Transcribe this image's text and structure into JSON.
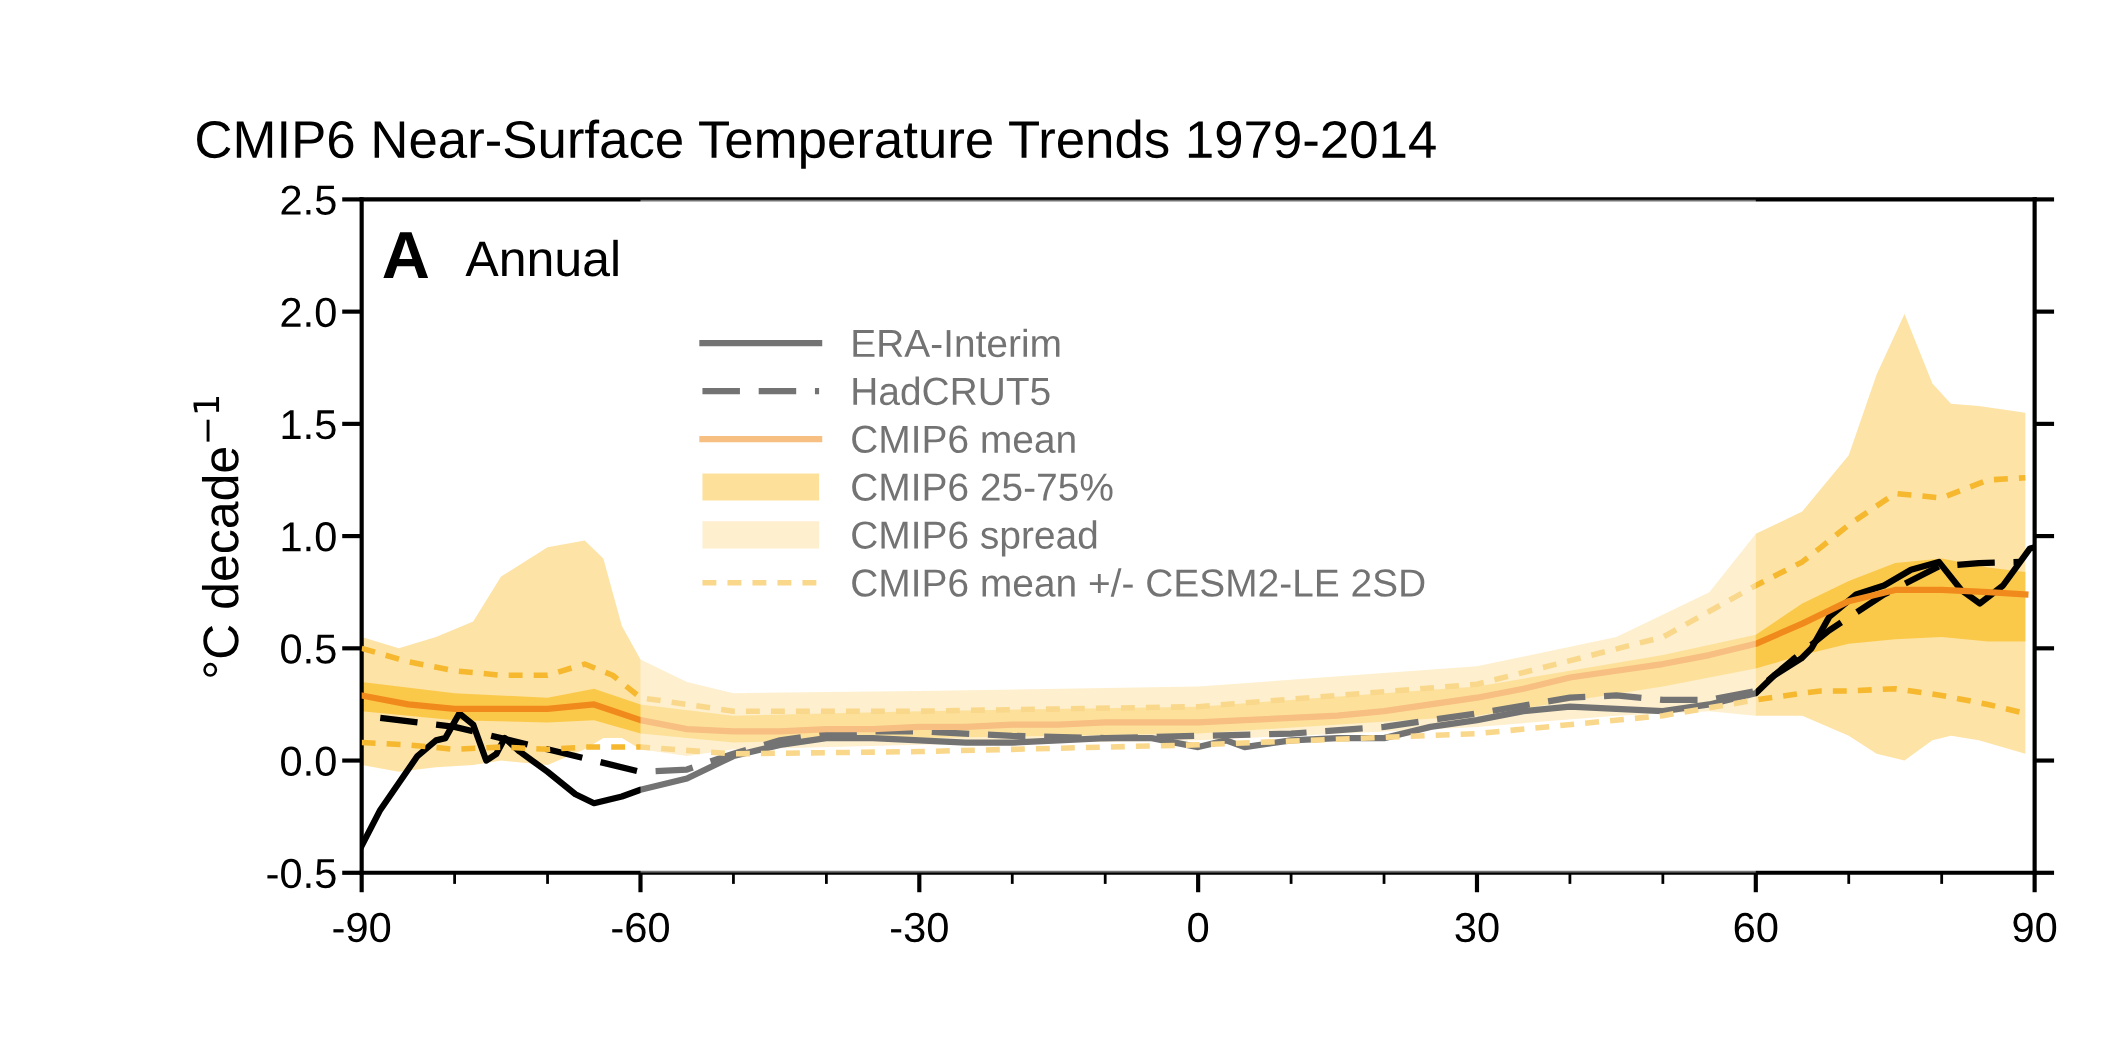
{
  "chart_data": {
    "type": "line",
    "title": "CMIP6 Near-Surface Temperature Trends 1979-2014",
    "ylabel": "°C decade$^{−1}$",
    "annotations": [
      "A",
      "Annual"
    ],
    "xlim": [
      -90,
      90
    ],
    "xticks": [
      -90,
      {
        "value": -80,
        "label": null
      },
      {
        "value": -70,
        "label": null
      },
      -60,
      {
        "value": -50,
        "label": null
      },
      {
        "value": -40,
        "label": null
      },
      -30,
      {
        "value": -20,
        "label": null
      },
      {
        "value": -10,
        "label": null
      },
      0,
      {
        "value": 10,
        "label": null
      },
      {
        "value": 20,
        "label": null
      },
      30,
      {
        "value": 40,
        "label": null
      },
      {
        "value": 50,
        "label": null
      },
      60,
      {
        "value": 70,
        "label": null
      },
      {
        "value": 80,
        "label": null
      },
      90
    ],
    "ylim": [
      -0.5,
      2.5
    ],
    "yticks": [
      {
        "value": -0.5,
        "label": "-0.5"
      },
      {
        "value": 0,
        "label": "0.0"
      },
      0.5,
      {
        "value": 1.0,
        "label": "1.0"
      },
      1.5,
      {
        "value": 2.0,
        "label": "2.0"
      },
      2.5
    ],
    "grid": false,
    "legend": "top",
    "bands": [
      {
        "axis": "x",
        "from": -60,
        "to": 60,
        "color": "#ffffff"
      }
    ],
    "series": [
      {
        "name": "ERA-Interim",
        "color": "#000000",
        "line_style": "solid",
        "x": [
          -90,
          -89,
          -88,
          -86,
          -84,
          -82,
          -81,
          -79.5,
          -78,
          -76.6,
          -75.5,
          -74.6,
          -73,
          -70,
          -67,
          -65,
          -62,
          -60,
          -55,
          -50,
          -45,
          -40,
          -35,
          -30,
          -25,
          -20,
          -15,
          -10,
          -5,
          0,
          3,
          5,
          10,
          15,
          20,
          25,
          30,
          35,
          40,
          45,
          50,
          55,
          60,
          62,
          64.9,
          66,
          67.9,
          70.8,
          73.8,
          76.7,
          79.7,
          82.1,
          84.1,
          86.6,
          89.5,
          90
        ],
        "values": [
          -0.38,
          -0.3,
          -0.22,
          -0.1,
          0.02,
          0.09,
          0.1,
          0.21,
          0.16,
          0.0,
          0.03,
          0.1,
          0.04,
          -0.05,
          -0.15,
          -0.19,
          -0.16,
          -0.13,
          -0.08,
          0.02,
          0.07,
          0.1,
          0.1,
          0.09,
          0.08,
          0.08,
          0.09,
          0.1,
          0.1,
          0.06,
          0.09,
          0.06,
          0.09,
          0.1,
          0.1,
          0.15,
          0.18,
          0.22,
          0.24,
          0.23,
          0.22,
          0.25,
          0.3,
          0.38,
          0.455,
          0.5,
          0.64,
          0.74,
          0.78,
          0.85,
          0.885,
          0.76,
          0.7,
          0.78,
          0.945,
          0.95
        ]
      },
      {
        "name": "HadCRUT5",
        "color": "#000000",
        "line_style": "dashed",
        "x": [
          -88,
          -80,
          -75,
          -70,
          -65,
          -60,
          -55,
          -50,
          -45,
          -40,
          -35,
          -30,
          -20,
          -10,
          0,
          10,
          20,
          30,
          40,
          45,
          50,
          55,
          60,
          64,
          67.9,
          73.8,
          79.7,
          84,
          88.5
        ],
        "values": [
          0.19,
          0.15,
          0.1,
          0.05,
          0.0,
          -0.05,
          -0.04,
          0.03,
          0.09,
          0.12,
          0.13,
          0.13,
          0.11,
          0.1,
          0.11,
          0.12,
          0.15,
          0.21,
          0.28,
          0.29,
          0.27,
          0.27,
          0.31,
          0.45,
          0.58,
          0.74,
          0.865,
          0.88,
          0.885
        ]
      },
      {
        "name": "CMIP6 mean",
        "color": "#f08a1c",
        "line_style": "solid",
        "x": [
          -90,
          -85,
          -80,
          -75,
          -70,
          -65,
          -60,
          -55,
          -50,
          -45,
          -40,
          -35,
          -30,
          -25,
          -20,
          -15,
          -10,
          -5,
          0,
          5,
          10,
          15,
          20,
          25,
          30,
          35,
          40,
          45,
          50,
          55,
          60,
          65,
          70,
          75,
          80,
          85,
          89
        ],
        "values": [
          0.29,
          0.25,
          0.23,
          0.23,
          0.23,
          0.25,
          0.18,
          0.14,
          0.13,
          0.13,
          0.14,
          0.14,
          0.15,
          0.15,
          0.16,
          0.16,
          0.17,
          0.17,
          0.17,
          0.18,
          0.19,
          0.2,
          0.22,
          0.25,
          0.28,
          0.32,
          0.37,
          0.4,
          0.43,
          0.47,
          0.52,
          0.61,
          0.71,
          0.76,
          0.76,
          0.75,
          0.74
        ]
      },
      {
        "name": "CMIP6 25-75%",
        "type": "area",
        "color": "#fbc94a",
        "x": [
          -90,
          -80,
          -70,
          -65,
          -60,
          -50,
          -30,
          0,
          30,
          50,
          60,
          65,
          70,
          75,
          80,
          85,
          89
        ],
        "values": [
          null,
          null,
          null,
          null,
          null,
          null,
          null,
          null,
          null,
          null,
          null,
          null,
          null,
          null,
          null,
          null,
          null
        ],
        "lower": [
          0.22,
          0.18,
          0.17,
          0.18,
          0.12,
          0.08,
          0.1,
          0.12,
          0.2,
          0.33,
          0.41,
          0.47,
          0.52,
          0.54,
          0.55,
          0.53,
          0.53
        ],
        "upper": [
          0.35,
          0.3,
          0.28,
          0.32,
          0.25,
          0.2,
          0.22,
          0.24,
          0.33,
          0.47,
          0.56,
          0.7,
          0.8,
          0.88,
          0.9,
          0.86,
          0.84
        ]
      },
      {
        "name": "CMIP6 spread",
        "type": "area",
        "color": "#fde3a6",
        "x": [
          -90,
          -86,
          -82,
          -78,
          -75,
          -70,
          -66,
          -64,
          -62,
          -60,
          -55,
          -50,
          -30,
          0,
          30,
          45,
          55,
          60,
          65,
          70,
          73,
          76,
          79,
          81,
          84,
          89
        ],
        "values": [
          null,
          null,
          null,
          null,
          null,
          null,
          null,
          null,
          null,
          null,
          null,
          null,
          null,
          null,
          null,
          null,
          null,
          null,
          null,
          null,
          null,
          null,
          null,
          null,
          null,
          null
        ],
        "lower": [
          -0.02,
          -0.05,
          -0.03,
          -0.02,
          0.0,
          -0.02,
          0.05,
          0.1,
          0.1,
          0.05,
          0.02,
          0.05,
          0.07,
          0.09,
          0.15,
          0.2,
          0.22,
          0.2,
          0.2,
          0.11,
          0.03,
          0.0,
          0.09,
          0.11,
          0.09,
          0.03
        ],
        "upper": [
          0.55,
          0.5,
          0.55,
          0.62,
          0.82,
          0.95,
          0.98,
          0.9,
          0.6,
          0.45,
          0.35,
          0.3,
          0.31,
          0.33,
          0.42,
          0.55,
          0.75,
          1.01,
          1.11,
          1.36,
          1.72,
          1.99,
          1.68,
          1.59,
          1.58,
          1.55
        ]
      },
      {
        "name": "CMIP6 mean +/- CESM2-LE 2SD",
        "color": "#f5b82e",
        "line_style": "dotted",
        "x": [
          -90,
          -85,
          -80,
          -75,
          -70,
          -66,
          -63,
          -60,
          -50,
          -30,
          0,
          30,
          50,
          60,
          65,
          67,
          70,
          75,
          80,
          85,
          89
        ],
        "values": [
          0.5,
          0.44,
          0.4,
          0.38,
          0.38,
          0.43,
          0.38,
          0.28,
          0.22,
          0.22,
          0.24,
          0.34,
          0.55,
          0.78,
          0.885,
          0.95,
          1.05,
          1.19,
          1.17,
          1.25,
          1.26
        ]
      },
      {
        "color": "#f5b82e",
        "line_style": "dotted",
        "x": [
          -90,
          -85,
          -80,
          -75,
          -70,
          -66,
          -63,
          -60,
          -50,
          -30,
          0,
          30,
          50,
          60,
          65,
          67,
          70,
          75,
          80,
          85,
          89
        ],
        "values": [
          0.08,
          0.07,
          0.05,
          0.06,
          0.05,
          0.06,
          0.06,
          0.06,
          0.03,
          0.04,
          0.07,
          0.12,
          0.2,
          0.27,
          0.3,
          0.31,
          0.31,
          0.32,
          0.29,
          0.25,
          0.21
        ]
      }
    ]
  }
}
